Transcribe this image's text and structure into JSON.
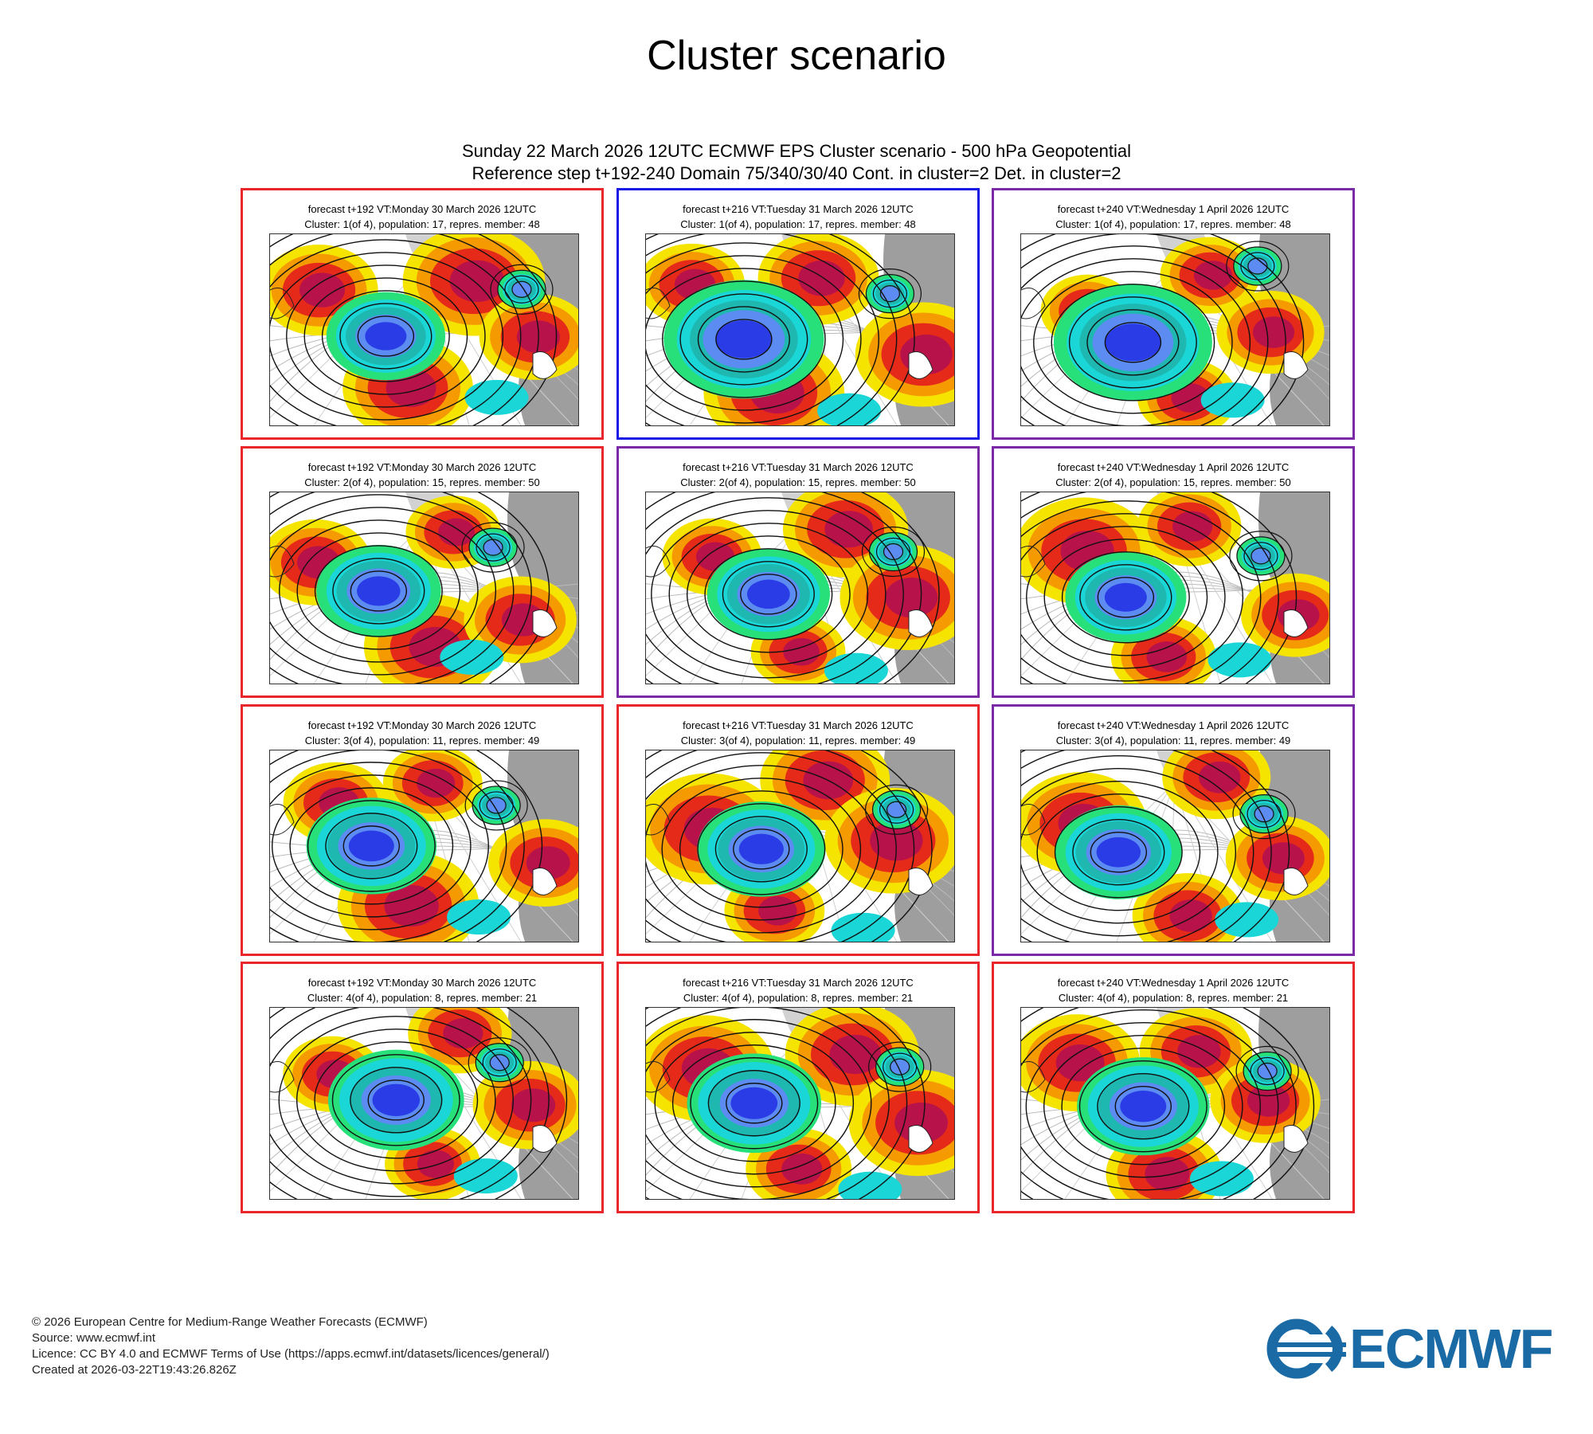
{
  "title": "Cluster scenario",
  "header": {
    "line1": "Sunday 22 March 2026 12UTC ECMWF EPS Cluster scenario - 500 hPa Geopotential",
    "line2": "Reference step t+192-240 Domain 75/340/30/40 Cont. in cluster=2 Det. in cluster=2"
  },
  "colors": {
    "red_border": "#e8262b",
    "blue_border": "#1a1ae6",
    "purple_border": "#7a2aa6",
    "brand": "#1a6aa6"
  },
  "icons": {
    "logo": "ecmwf-logo-icon"
  },
  "columns": [
    "forecast t+192 VT:Monday 30 March 2026 12UTC",
    "forecast t+216 VT:Tuesday 31 March 2026 12UTC",
    "forecast t+240 VT:Wednesday 1 April 2026 12UTC"
  ],
  "clusters": [
    "Cluster: 1(of 4), population: 17, repres. member: 48",
    "Cluster: 2(of 4), population: 15, repres. member: 50",
    "Cluster: 3(of 4), population: 11, repres. member: 49",
    "Cluster: 4(of 4), population: 8, repres. member: 21"
  ],
  "panel_borders": [
    [
      "red",
      "blue",
      "purple"
    ],
    [
      "red",
      "purple",
      "purple"
    ],
    [
      "red",
      "red",
      "purple"
    ],
    [
      "red",
      "red",
      "red"
    ]
  ],
  "footer": {
    "copyright": "© 2026 European Centre for Medium-Range Weather Forecasts (ECMWF)",
    "source": "Source: www.ecmwf.int",
    "licence": "Licence: CC BY 4.0 and ECMWF Terms of Use (https://apps.ecmwf.int/datasets/licences/general/)",
    "created": "Created at 2026-03-22T19:43:26.826Z"
  },
  "logo_text": "ECMWF"
}
